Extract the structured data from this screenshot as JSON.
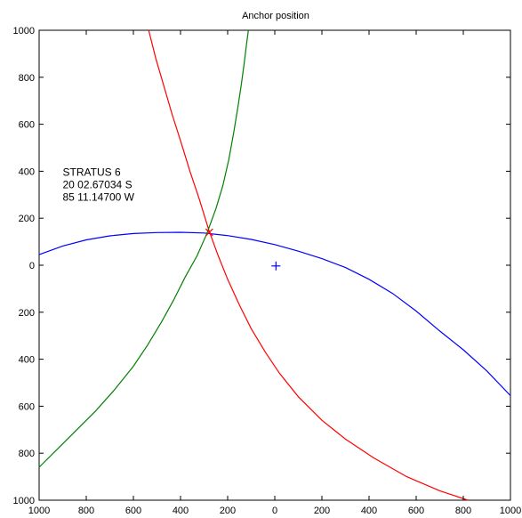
{
  "chart_data": {
    "type": "line",
    "title": "Anchor position",
    "xlabel": "",
    "ylabel": "",
    "xlim": [
      -1000,
      1000
    ],
    "ylim": [
      -1000,
      1000
    ],
    "x_ticks": [
      -1000,
      -800,
      -600,
      -400,
      -200,
      0,
      200,
      400,
      600,
      800,
      1000
    ],
    "y_ticks": [
      -1000,
      -800,
      -600,
      -400,
      -200,
      0,
      200,
      400,
      600,
      800,
      1000
    ],
    "x_tick_labels": [
      "1000",
      "800",
      "600",
      "400",
      "200",
      "0",
      "200",
      "400",
      "600",
      "800",
      "1000"
    ],
    "y_tick_labels": [
      "1000",
      "800",
      "600",
      "400",
      "200",
      "0",
      "200",
      "400",
      "600",
      "800",
      "1000"
    ],
    "grid": false,
    "annotation": {
      "lines": [
        "STRATUS 6",
        "20 02.67034 S",
        "85 11.14700 W"
      ],
      "anchor_x": -900,
      "anchor_y": 380
    },
    "series": [
      {
        "color": "#0000ff",
        "points": [
          [
            -1000,
            45
          ],
          [
            -900,
            82
          ],
          [
            -800,
            108
          ],
          [
            -700,
            125
          ],
          [
            -600,
            135
          ],
          [
            -500,
            139
          ],
          [
            -400,
            140
          ],
          [
            -300,
            137
          ],
          [
            -200,
            126
          ],
          [
            -100,
            110
          ],
          [
            0,
            88
          ],
          [
            100,
            60
          ],
          [
            200,
            28
          ],
          [
            300,
            -10
          ],
          [
            400,
            -60
          ],
          [
            500,
            -120
          ],
          [
            600,
            -195
          ],
          [
            700,
            -280
          ],
          [
            800,
            -360
          ],
          [
            900,
            -450
          ],
          [
            1000,
            -555
          ]
        ]
      },
      {
        "color": "#ff0000",
        "points": [
          [
            -535,
            1000
          ],
          [
            -505,
            880
          ],
          [
            -470,
            760
          ],
          [
            -435,
            640
          ],
          [
            -400,
            530
          ],
          [
            -360,
            400
          ],
          [
            -320,
            280
          ],
          [
            -280,
            150
          ],
          [
            -240,
            40
          ],
          [
            -200,
            -60
          ],
          [
            -150,
            -170
          ],
          [
            -100,
            -270
          ],
          [
            -40,
            -370
          ],
          [
            20,
            -460
          ],
          [
            100,
            -560
          ],
          [
            200,
            -660
          ],
          [
            300,
            -740
          ],
          [
            420,
            -820
          ],
          [
            560,
            -900
          ],
          [
            700,
            -960
          ],
          [
            820,
            -1000
          ]
        ]
      },
      {
        "color": "#008000",
        "points": [
          [
            -1000,
            -860
          ],
          [
            -920,
            -780
          ],
          [
            -840,
            -700
          ],
          [
            -760,
            -620
          ],
          [
            -680,
            -530
          ],
          [
            -600,
            -430
          ],
          [
            -540,
            -340
          ],
          [
            -480,
            -240
          ],
          [
            -430,
            -150
          ],
          [
            -380,
            -50
          ],
          [
            -330,
            40
          ],
          [
            -290,
            130
          ],
          [
            -250,
            240
          ],
          [
            -220,
            340
          ],
          [
            -195,
            450
          ],
          [
            -175,
            560
          ],
          [
            -157,
            670
          ],
          [
            -142,
            770
          ],
          [
            -130,
            860
          ],
          [
            -120,
            940
          ],
          [
            -112,
            1000
          ]
        ]
      }
    ],
    "markers": [
      {
        "type": "x",
        "color": "#ff0000",
        "x": -278,
        "y": 140
      },
      {
        "type": "plus",
        "color": "#0000ff",
        "x": 5,
        "y": -3
      }
    ]
  }
}
